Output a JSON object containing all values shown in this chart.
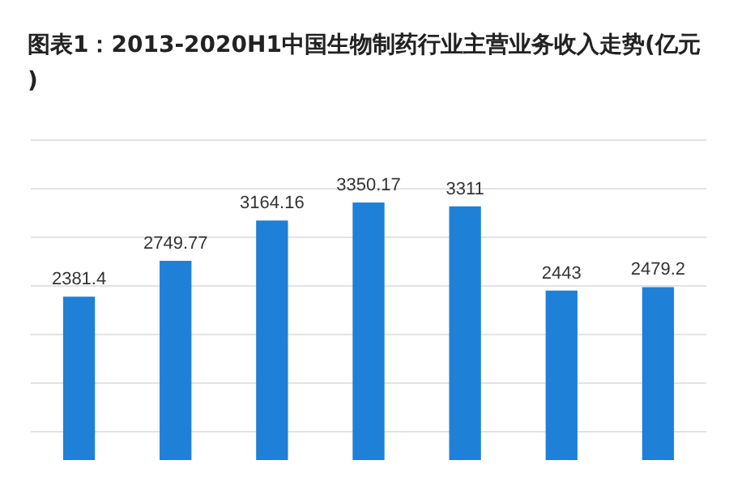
{
  "chart_data": {
    "type": "bar",
    "title": "图表1：2013-2020H1中国生物制药行业主营业务收入走势(亿元)",
    "categories": [
      null,
      null,
      null,
      null,
      null,
      null,
      null
    ],
    "values": [
      2381.4,
      2749.77,
      3164.16,
      3350.17,
      3311,
      2443,
      2479.2
    ],
    "color": "#1f80d8",
    "data_labels": true,
    "grid": "y",
    "ylim": [
      700,
      4000
    ],
    "yticks": [
      {
        "value": 1000,
        "label": null
      },
      {
        "value": 1500,
        "label": null
      },
      {
        "value": 2000,
        "label": null
      },
      {
        "value": 2500,
        "label": null
      },
      {
        "value": 3000,
        "label": null
      },
      {
        "value": 3500,
        "label": null
      },
      {
        "value": 4000,
        "label": null
      }
    ]
  }
}
